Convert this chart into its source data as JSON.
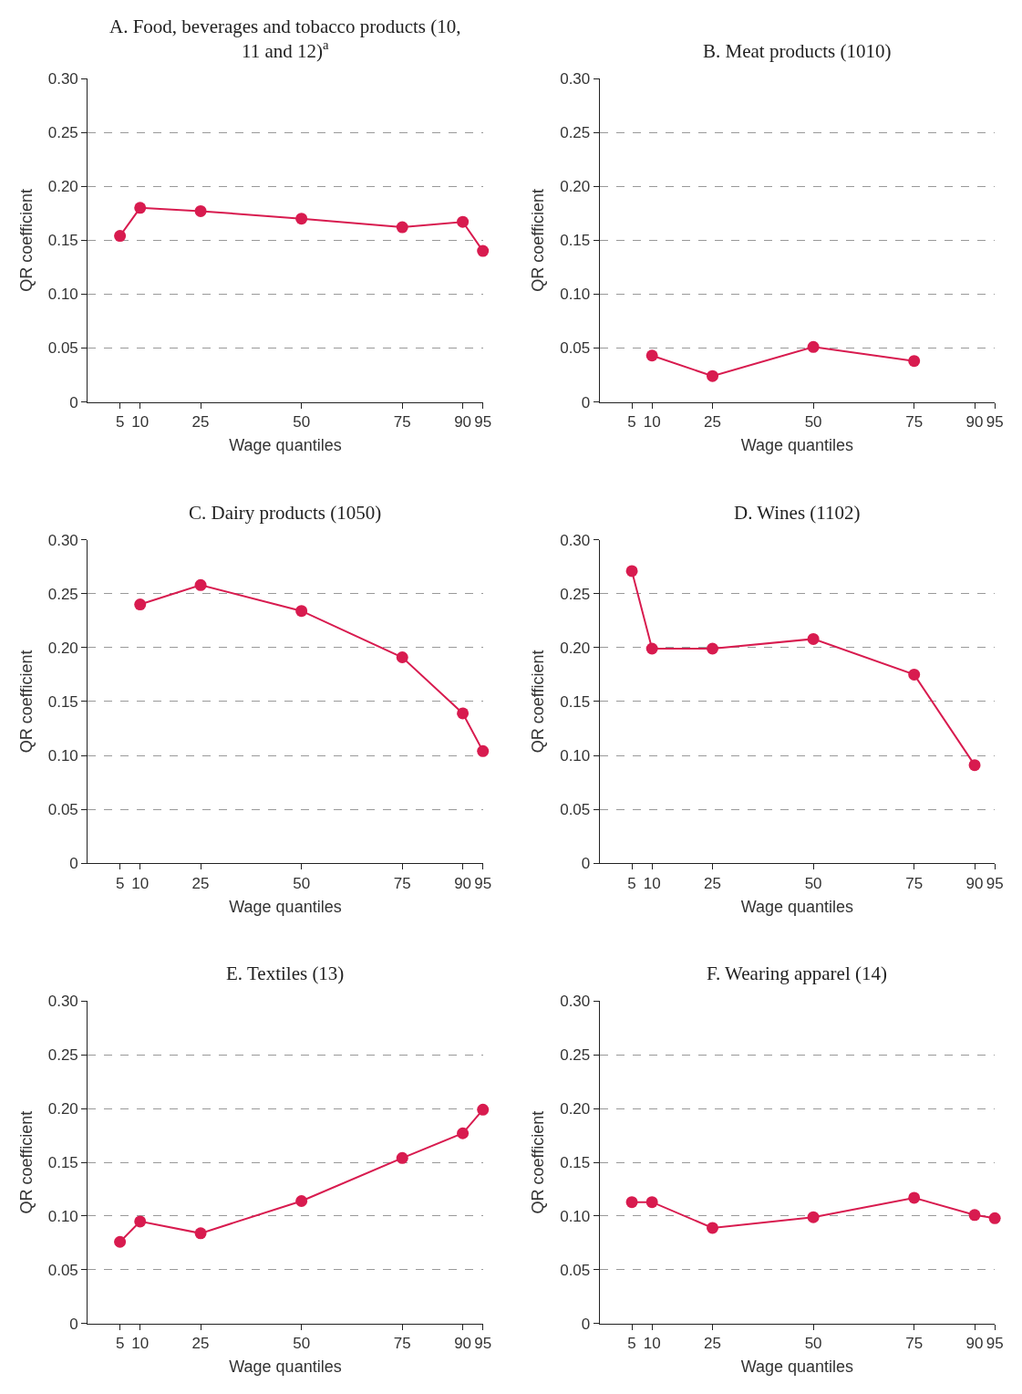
{
  "chart_data": [
    {
      "type": "line",
      "title": "A. Food, beverages and tobacco products (10, 11 and 12)$^{a}$",
      "xlabel": "Wage quantiles",
      "ylabel": "QR coefficient",
      "x": [
        5,
        10,
        25,
        50,
        75,
        90,
        95
      ],
      "values": [
        0.154,
        0.18,
        0.177,
        0.17,
        0.162,
        0.167,
        0.14
      ],
      "color": "#d81b4f",
      "marker": "circle",
      "grid": "y",
      "xlim": [
        -3,
        95
      ],
      "ylim": [
        0,
        0.3
      ],
      "xticks": [
        5,
        10,
        25,
        50,
        75,
        90,
        95
      ],
      "yticks": [
        0,
        {
          "value": 0.05,
          "label": "0.05"
        },
        {
          "value": 0.1,
          "label": "0.10"
        },
        {
          "value": 0.15,
          "label": "0.15"
        },
        {
          "value": 0.2,
          "label": "0.20"
        },
        {
          "value": 0.25,
          "label": "0.25"
        },
        {
          "value": 0.3,
          "label": "0.30"
        }
      ]
    },
    {
      "type": "line",
      "title": "B. Meat products (1010)",
      "xlabel": "Wage quantiles",
      "ylabel": "QR coefficient",
      "x": [
        10,
        25,
        50,
        75
      ],
      "values": [
        0.043,
        0.024,
        0.051,
        0.038
      ],
      "color": "#d81b4f",
      "marker": "circle",
      "grid": "y",
      "xlim": [
        -3,
        95
      ],
      "ylim": [
        0,
        0.3
      ],
      "xticks": [
        5,
        10,
        25,
        50,
        75,
        90,
        95
      ],
      "yticks": [
        0,
        {
          "value": 0.05,
          "label": "0.05"
        },
        {
          "value": 0.1,
          "label": "0.10"
        },
        {
          "value": 0.15,
          "label": "0.15"
        },
        {
          "value": 0.2,
          "label": "0.20"
        },
        {
          "value": 0.25,
          "label": "0.25"
        },
        {
          "value": 0.3,
          "label": "0.30"
        }
      ]
    },
    {
      "type": "line",
      "title": "C. Dairy products (1050)",
      "xlabel": "Wage quantiles",
      "ylabel": "QR coefficient",
      "x": [
        10,
        25,
        50,
        75,
        90,
        95
      ],
      "values": [
        0.24,
        0.258,
        0.234,
        0.191,
        0.139,
        0.104
      ],
      "color": "#d81b4f",
      "marker": "circle",
      "grid": "y",
      "xlim": [
        -3,
        95
      ],
      "ylim": [
        0,
        0.3
      ],
      "xticks": [
        5,
        10,
        25,
        50,
        75,
        90,
        95
      ],
      "yticks": [
        0,
        {
          "value": 0.05,
          "label": "0.05"
        },
        {
          "value": 0.1,
          "label": "0.10"
        },
        {
          "value": 0.15,
          "label": "0.15"
        },
        {
          "value": 0.2,
          "label": "0.20"
        },
        {
          "value": 0.25,
          "label": "0.25"
        },
        {
          "value": 0.3,
          "label": "0.30"
        }
      ]
    },
    {
      "type": "line",
      "title": "D. Wines (1102)",
      "xlabel": "Wage quantiles",
      "ylabel": "QR coefficient",
      "x": [
        5,
        10,
        25,
        50,
        75,
        90
      ],
      "values": [
        0.271,
        0.199,
        0.199,
        0.208,
        0.175,
        0.091
      ],
      "color": "#d81b4f",
      "marker": "circle",
      "grid": "y",
      "xlim": [
        -3,
        95
      ],
      "ylim": [
        0,
        0.3
      ],
      "xticks": [
        5,
        10,
        25,
        50,
        75,
        90,
        95
      ],
      "yticks": [
        0,
        {
          "value": 0.05,
          "label": "0.05"
        },
        {
          "value": 0.1,
          "label": "0.10"
        },
        {
          "value": 0.15,
          "label": "0.15"
        },
        {
          "value": 0.2,
          "label": "0.20"
        },
        {
          "value": 0.25,
          "label": "0.25"
        },
        {
          "value": 0.3,
          "label": "0.30"
        }
      ]
    },
    {
      "type": "line",
      "title": "E. Textiles (13)",
      "xlabel": "Wage quantiles",
      "ylabel": "QR coefficient",
      "x": [
        5,
        10,
        25,
        50,
        75,
        90,
        95
      ],
      "values": [
        0.076,
        0.095,
        0.084,
        0.114,
        0.154,
        0.177,
        0.199
      ],
      "color": "#d81b4f",
      "marker": "circle",
      "grid": "y",
      "xlim": [
        -3,
        95
      ],
      "ylim": [
        0,
        0.3
      ],
      "xticks": [
        5,
        10,
        25,
        50,
        75,
        90,
        95
      ],
      "yticks": [
        0,
        {
          "value": 0.05,
          "label": "0.05"
        },
        {
          "value": 0.1,
          "label": "0.10"
        },
        {
          "value": 0.15,
          "label": "0.15"
        },
        {
          "value": 0.2,
          "label": "0.20"
        },
        {
          "value": 0.25,
          "label": "0.25"
        },
        {
          "value": 0.3,
          "label": "0.30"
        }
      ]
    },
    {
      "type": "line",
      "title": "F. Wearing apparel (14)",
      "xlabel": "Wage quantiles",
      "ylabel": "QR coefficient",
      "x": [
        5,
        10,
        25,
        50,
        75,
        90,
        95
      ],
      "values": [
        0.113,
        0.113,
        0.089,
        0.099,
        0.117,
        0.101,
        0.098
      ],
      "color": "#d81b4f",
      "marker": "circle",
      "grid": "y",
      "xlim": [
        -3,
        95
      ],
      "ylim": [
        0,
        0.3
      ],
      "xticks": [
        5,
        10,
        25,
        50,
        75,
        90,
        95
      ],
      "yticks": [
        0,
        {
          "value": 0.05,
          "label": "0.05"
        },
        {
          "value": 0.1,
          "label": "0.10"
        },
        {
          "value": 0.15,
          "label": "0.15"
        },
        {
          "value": 0.2,
          "label": "0.20"
        },
        {
          "value": 0.25,
          "label": "0.25"
        },
        {
          "value": 0.3,
          "label": "0.30"
        }
      ]
    }
  ]
}
